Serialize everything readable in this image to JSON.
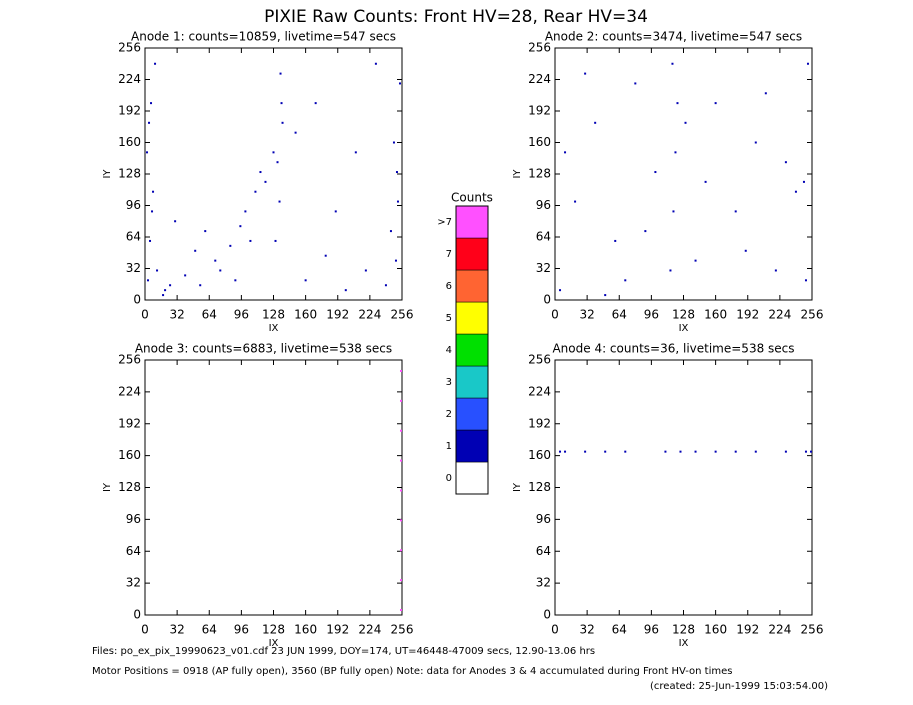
{
  "title": "PIXIE Raw Counts:  Front HV=28, Rear HV=34",
  "chart_data": [
    {
      "type": "scatter",
      "title": "Anode 1: counts=10859, livetime=547 secs",
      "x_label": "IX",
      "y_label": "IY",
      "xlim": [
        0,
        256
      ],
      "ylim": [
        0,
        256
      ],
      "xticks": [
        0,
        32,
        64,
        96,
        128,
        160,
        192,
        224,
        256
      ],
      "yticks": [
        0,
        32,
        64,
        96,
        128,
        160,
        192,
        224,
        256
      ],
      "series": [
        {
          "color": "#0000b4",
          "x": [
            3,
            5,
            8,
            2,
            6,
            10,
            4,
            7,
            12,
            250,
            252,
            248,
            254,
            245,
            251,
            132,
            135,
            137,
            134,
            130,
            128,
            136,
            20,
            40,
            55,
            70,
            85,
            100,
            110,
            60,
            75,
            90,
            105,
            115,
            50,
            30,
            25,
            18,
            95,
            120,
            160,
            180,
            200,
            220,
            240,
            170,
            210,
            230,
            190,
            150
          ],
          "y": [
            20,
            60,
            110,
            150,
            200,
            240,
            180,
            90,
            30,
            40,
            100,
            160,
            220,
            70,
            130,
            140,
            230,
            180,
            100,
            60,
            150,
            200,
            10,
            25,
            15,
            40,
            55,
            90,
            110,
            70,
            30,
            20,
            60,
            130,
            50,
            80,
            15,
            5,
            75,
            120,
            20,
            45,
            10,
            30,
            15,
            200,
            150,
            240,
            90,
            170
          ]
        }
      ]
    },
    {
      "type": "scatter",
      "title": "Anode 2: counts=3474, livetime=547 secs",
      "x_label": "IX",
      "y_label": "IY",
      "xlim": [
        0,
        256
      ],
      "ylim": [
        0,
        256
      ],
      "xticks": [
        0,
        32,
        64,
        96,
        128,
        160,
        192,
        224,
        256
      ],
      "yticks": [
        0,
        32,
        64,
        96,
        128,
        160,
        192,
        224,
        256
      ],
      "series": [
        {
          "color": "#0000b4",
          "x": [
            5,
            10,
            250,
            248,
            252,
            115,
            118,
            120,
            122,
            117,
            20,
            40,
            60,
            80,
            100,
            140,
            160,
            180,
            200,
            220,
            240,
            30,
            70,
            90,
            150,
            190,
            210,
            230,
            50,
            130
          ],
          "y": [
            10,
            150,
            20,
            120,
            240,
            30,
            90,
            150,
            200,
            240,
            100,
            180,
            60,
            220,
            130,
            40,
            200,
            90,
            160,
            30,
            110,
            230,
            20,
            70,
            120,
            50,
            210,
            140,
            5,
            180
          ]
        }
      ]
    },
    {
      "type": "scatter",
      "title": "Anode 3: counts=6883, livetime=538 secs",
      "x_label": "IX",
      "y_label": "IY",
      "xlim": [
        0,
        256
      ],
      "ylim": [
        0,
        256
      ],
      "xticks": [
        0,
        32,
        64,
        96,
        128,
        160,
        192,
        224,
        256
      ],
      "yticks": [
        0,
        32,
        64,
        96,
        128,
        160,
        192,
        224,
        256
      ],
      "series": [
        {
          "color": "#ff50ff",
          "x": [
            255,
            255,
            255,
            255,
            255,
            255,
            255,
            255,
            255
          ],
          "y": [
            5,
            35,
            65,
            95,
            125,
            155,
            185,
            215,
            245
          ]
        }
      ]
    },
    {
      "type": "scatter",
      "title": "Anode 4: counts=36, livetime=538 secs",
      "x_label": "IX",
      "y_label": "IY",
      "xlim": [
        0,
        256
      ],
      "ylim": [
        0,
        256
      ],
      "xticks": [
        0,
        32,
        64,
        96,
        128,
        160,
        192,
        224,
        256
      ],
      "yticks": [
        0,
        32,
        64,
        96,
        128,
        160,
        192,
        224,
        256
      ],
      "series": [
        {
          "color": "#0000b4",
          "x": [
            5,
            10,
            30,
            50,
            70,
            110,
            125,
            140,
            160,
            180,
            200,
            230,
            250,
            255
          ],
          "y": [
            164,
            164,
            164,
            164,
            164,
            164,
            164,
            164,
            164,
            164,
            164,
            164,
            164,
            164
          ]
        }
      ]
    },
    {
      "type": "colorbar",
      "title": "Counts",
      "categories": [
        "0",
        "1",
        "2",
        "3",
        "4",
        "5",
        "6",
        "7",
        ">7"
      ],
      "colors": [
        "#ffffff",
        "#0000b4",
        "#2850ff",
        "#19c8c8",
        "#00e000",
        "#ffff00",
        "#ff6432",
        "#ff0019",
        "#ff50ff"
      ]
    }
  ],
  "footer": {
    "files": "Files: po_ex_pix_19990623_v01.cdf   23 JUN 1999, DOY=174, UT=46448-47009 secs, 12.90-13.06 hrs",
    "motor": "Motor Positions = 0918 (AP fully open), 3560 (BP fully open)    Note: data for Anodes 3 & 4 accumulated during Front HV-on times",
    "created": "(created: 25-Jun-1999 15:03:54.00)"
  }
}
